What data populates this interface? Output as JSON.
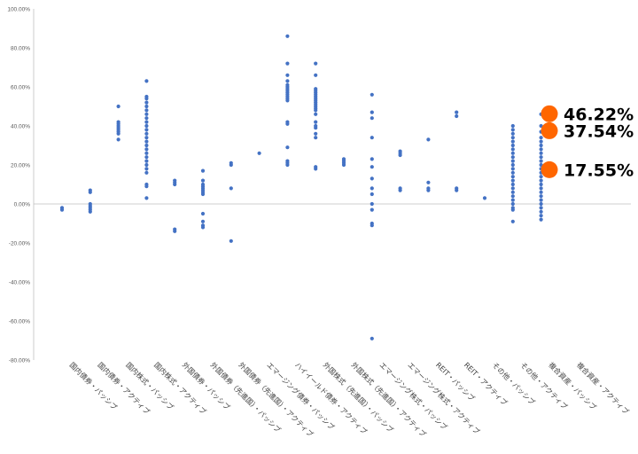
{
  "chart_data": {
    "type": "scatter",
    "title": "",
    "xlabel": "",
    "ylabel": "",
    "ylim": [
      -80,
      100
    ],
    "yticks": [
      100,
      80,
      60,
      40,
      20,
      0,
      -20,
      -40,
      -60,
      -80
    ],
    "ytick_labels": [
      "100.00%",
      "80.00%",
      "60.00%",
      "40.00%",
      "20.00%",
      "0.00%",
      "-20.00%",
      "-40.00%",
      "-60.00%",
      "-80.00%"
    ],
    "grid": false,
    "legend": "none",
    "categories": [
      "国内債券・パッシブ",
      "国内債券・アクティブ",
      "国内株式・パッシブ",
      "国内株式・アクティブ",
      "外国債券・パッシブ",
      "外国債券（先進国）・パッシブ",
      "外国債券（先進国）・アクティブ",
      "エマージング債券・パッシブ",
      "ハイイールド債券・アクティブ",
      "外国株式（先進国）・パッシブ",
      "外国株式（先進国）・アクティブ",
      "エマージング株式・パッシブ",
      "エマージング株式・アクティブ",
      "REIT・パッシブ",
      "REIT・アクティブ",
      "その他・パッシブ",
      "その他・アクティブ",
      "複合資産・パッシブ",
      "複合資産・アクティブ"
    ],
    "series": [
      {
        "color": "#4472c4",
        "points": [
          [
            0,
            -2
          ],
          [
            0,
            -3
          ],
          [
            1,
            7
          ],
          [
            1,
            6
          ],
          [
            1,
            0
          ],
          [
            1,
            -1
          ],
          [
            1,
            -2
          ],
          [
            1,
            -3
          ],
          [
            1,
            -4
          ],
          [
            2,
            50
          ],
          [
            2,
            42
          ],
          [
            2,
            41
          ],
          [
            2,
            40
          ],
          [
            2,
            39
          ],
          [
            2,
            38
          ],
          [
            2,
            37
          ],
          [
            2,
            36
          ],
          [
            2,
            33
          ],
          [
            3,
            63
          ],
          [
            3,
            55
          ],
          [
            3,
            54
          ],
          [
            3,
            52
          ],
          [
            3,
            50
          ],
          [
            3,
            48
          ],
          [
            3,
            46
          ],
          [
            3,
            44
          ],
          [
            3,
            42
          ],
          [
            3,
            40
          ],
          [
            3,
            38
          ],
          [
            3,
            36
          ],
          [
            3,
            34
          ],
          [
            3,
            32
          ],
          [
            3,
            30
          ],
          [
            3,
            28
          ],
          [
            3,
            26
          ],
          [
            3,
            24
          ],
          [
            3,
            22
          ],
          [
            3,
            20
          ],
          [
            3,
            18
          ],
          [
            3,
            16
          ],
          [
            3,
            10
          ],
          [
            3,
            9
          ],
          [
            3,
            3
          ],
          [
            4,
            12
          ],
          [
            4,
            11
          ],
          [
            4,
            10
          ],
          [
            4,
            -13
          ],
          [
            4,
            -14
          ],
          [
            5,
            17
          ],
          [
            5,
            12
          ],
          [
            5,
            10
          ],
          [
            5,
            9
          ],
          [
            5,
            8
          ],
          [
            5,
            7
          ],
          [
            5,
            6
          ],
          [
            5,
            5
          ],
          [
            5,
            -5
          ],
          [
            5,
            -9
          ],
          [
            5,
            -11
          ],
          [
            5,
            -12
          ],
          [
            6,
            21
          ],
          [
            6,
            20
          ],
          [
            6,
            8
          ],
          [
            6,
            -19
          ],
          [
            7,
            26
          ],
          [
            8,
            86
          ],
          [
            8,
            72
          ],
          [
            8,
            66
          ],
          [
            8,
            63
          ],
          [
            8,
            61
          ],
          [
            8,
            60
          ],
          [
            8,
            59
          ],
          [
            8,
            58
          ],
          [
            8,
            57
          ],
          [
            8,
            56
          ],
          [
            8,
            55
          ],
          [
            8,
            54
          ],
          [
            8,
            53
          ],
          [
            8,
            42
          ],
          [
            8,
            41
          ],
          [
            8,
            29
          ],
          [
            8,
            22
          ],
          [
            8,
            21
          ],
          [
            8,
            20
          ],
          [
            9,
            72
          ],
          [
            9,
            66
          ],
          [
            9,
            59
          ],
          [
            9,
            58
          ],
          [
            9,
            57
          ],
          [
            9,
            56
          ],
          [
            9,
            55
          ],
          [
            9,
            54
          ],
          [
            9,
            53
          ],
          [
            9,
            52
          ],
          [
            9,
            51
          ],
          [
            9,
            50
          ],
          [
            9,
            49
          ],
          [
            9,
            48
          ],
          [
            9,
            46
          ],
          [
            9,
            42
          ],
          [
            9,
            40
          ],
          [
            9,
            39
          ],
          [
            9,
            36
          ],
          [
            9,
            34
          ],
          [
            9,
            19
          ],
          [
            9,
            18
          ],
          [
            10,
            23
          ],
          [
            10,
            22
          ],
          [
            10,
            21
          ],
          [
            10,
            20
          ],
          [
            11,
            56
          ],
          [
            11,
            47
          ],
          [
            11,
            44
          ],
          [
            11,
            34
          ],
          [
            11,
            23
          ],
          [
            11,
            19
          ],
          [
            11,
            13
          ],
          [
            11,
            8
          ],
          [
            11,
            5
          ],
          [
            11,
            0
          ],
          [
            11,
            -3
          ],
          [
            11,
            -10
          ],
          [
            11,
            -11
          ],
          [
            11,
            -69
          ],
          [
            12,
            27
          ],
          [
            12,
            26
          ],
          [
            12,
            25
          ],
          [
            12,
            8
          ],
          [
            12,
            7
          ],
          [
            13,
            33
          ],
          [
            13,
            11
          ],
          [
            13,
            8
          ],
          [
            13,
            7
          ],
          [
            14,
            47
          ],
          [
            14,
            45
          ],
          [
            14,
            8
          ],
          [
            14,
            7
          ],
          [
            15,
            3
          ],
          [
            16,
            40
          ],
          [
            16,
            38
          ],
          [
            16,
            36
          ],
          [
            16,
            34
          ],
          [
            16,
            32
          ],
          [
            16,
            30
          ],
          [
            16,
            28
          ],
          [
            16,
            26
          ],
          [
            16,
            24
          ],
          [
            16,
            22
          ],
          [
            16,
            20
          ],
          [
            16,
            18
          ],
          [
            16,
            16
          ],
          [
            16,
            14
          ],
          [
            16,
            12
          ],
          [
            16,
            10
          ],
          [
            16,
            8
          ],
          [
            16,
            6
          ],
          [
            16,
            4
          ],
          [
            16,
            2
          ],
          [
            16,
            0
          ],
          [
            16,
            -2
          ],
          [
            16,
            -3
          ],
          [
            16,
            -9
          ],
          [
            17,
            46
          ],
          [
            17,
            40
          ],
          [
            17,
            37
          ],
          [
            17,
            34
          ],
          [
            17,
            32
          ],
          [
            17,
            30
          ],
          [
            17,
            28
          ],
          [
            17,
            26
          ],
          [
            17,
            24
          ],
          [
            17,
            22
          ],
          [
            17,
            20
          ],
          [
            17,
            18
          ],
          [
            17,
            16
          ],
          [
            17,
            14
          ],
          [
            17,
            12
          ],
          [
            17,
            10
          ],
          [
            17,
            8
          ],
          [
            17,
            6
          ],
          [
            17,
            4
          ],
          [
            17,
            2
          ],
          [
            17,
            0
          ],
          [
            17,
            -2
          ],
          [
            17,
            -4
          ],
          [
            17,
            -6
          ],
          [
            17,
            -8
          ]
        ]
      }
    ],
    "annotations": [
      {
        "label": "46.22%",
        "value": 46.22,
        "color": "#ff6600"
      },
      {
        "label": "37.54%",
        "value": 37.54,
        "color": "#ff6600"
      },
      {
        "label": "17.55%",
        "value": 17.55,
        "color": "#ff6600"
      }
    ]
  }
}
